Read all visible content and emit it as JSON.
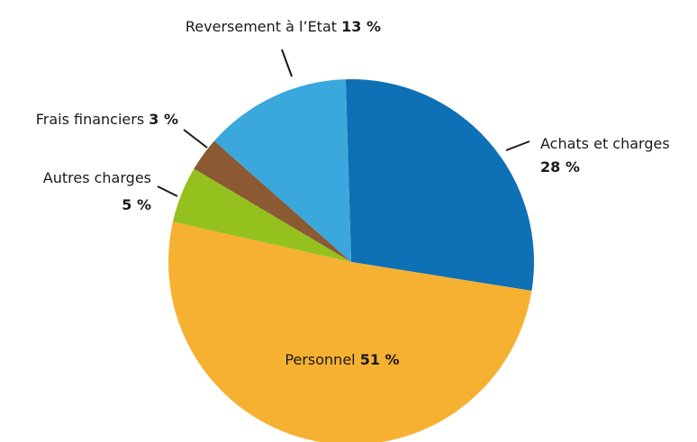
{
  "chart_data": {
    "type": "pie",
    "categories": [
      "Achats et charges",
      "Personnel",
      "Autres charges",
      "Frais financiers",
      "Reversement à l’Etat"
    ],
    "values": [
      28,
      51,
      5,
      3,
      13
    ],
    "value_labels": [
      "28 %",
      "51 %",
      "5 %",
      "3 %",
      "13 %"
    ],
    "colors": [
      "#0e70b5",
      "#f6b133",
      "#95c11f",
      "#8b5a32",
      "#3aa8dc"
    ]
  }
}
